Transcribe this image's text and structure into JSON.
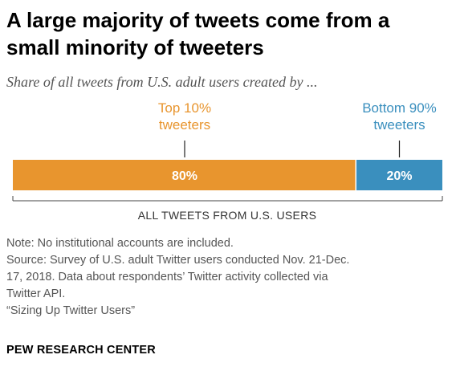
{
  "header": {
    "title": "A large majority of tweets come from a small minority of tweeters",
    "subtitle": "Share of all tweets from U.S. adult users created by ..."
  },
  "chart_data": {
    "type": "bar",
    "orientation": "horizontal-stacked",
    "categories": [
      "ALL TWEETS FROM U.S. USERS"
    ],
    "series": [
      {
        "name": "Top 10% tweeters",
        "label_lines": [
          "Top 10%",
          "tweeters"
        ],
        "values": [
          80
        ],
        "data_label": "80%",
        "color": "#E8952E",
        "label_color": "#E8952E"
      },
      {
        "name": "Bottom 90% tweeters",
        "label_lines": [
          "Bottom 90%",
          "tweeters"
        ],
        "values": [
          20
        ],
        "data_label": "20%",
        "color": "#3A8FBE",
        "label_color": "#3A8FBE"
      }
    ],
    "axis_label": "ALL TWEETS FROM U.S. USERS",
    "xlim": [
      0,
      100
    ],
    "grid": false,
    "legend": "none"
  },
  "footer": {
    "note": "Note: No institutional accounts are included.",
    "source_lines": [
      "Source: Survey of U.S. adult Twitter users conducted Nov. 21-Dec.",
      "17, 2018. Data about respondents’ Twitter activity collected via",
      "Twitter API."
    ],
    "report": "“Sizing Up Twitter Users”",
    "org": "PEW RESEARCH CENTER"
  }
}
